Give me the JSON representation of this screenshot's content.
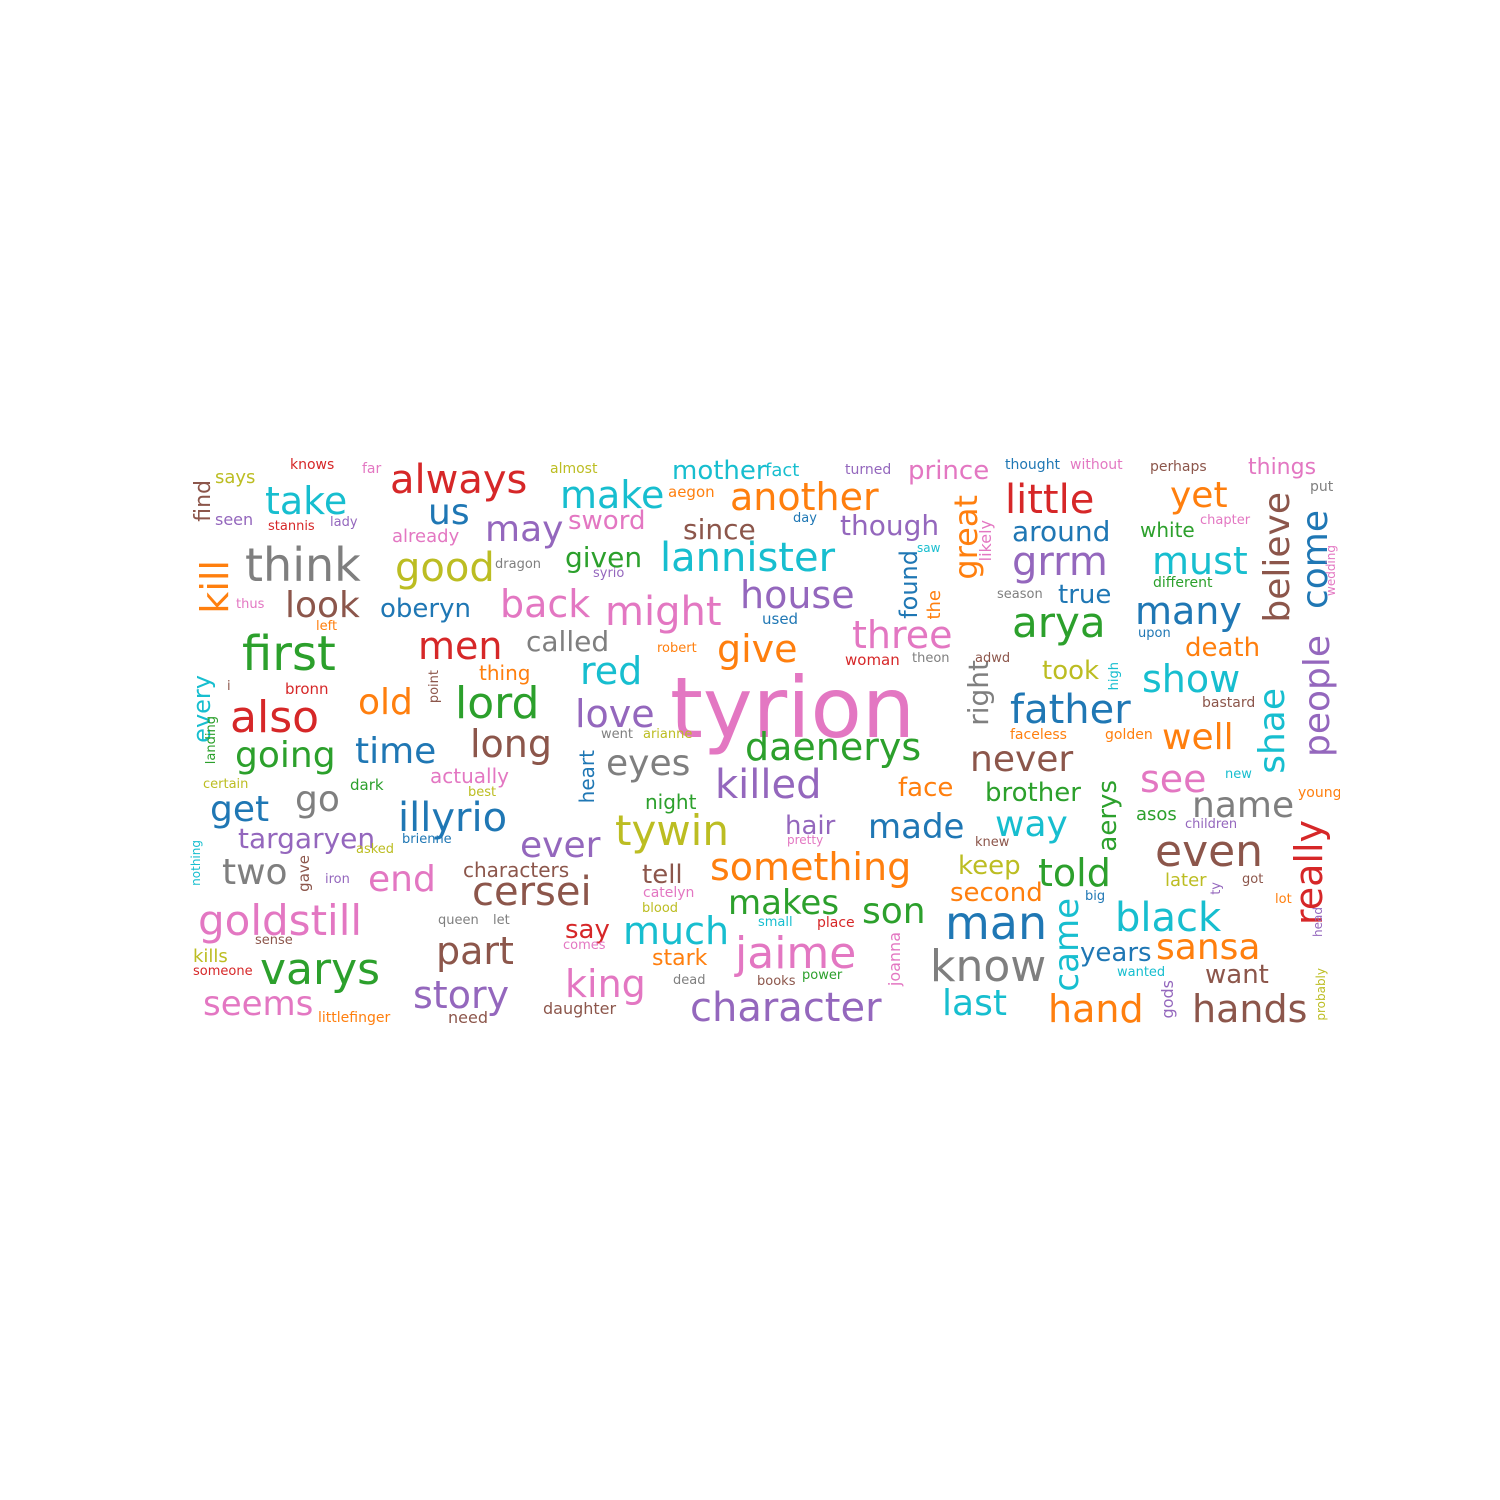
{
  "palette": {
    "blue": "#1f77b4",
    "orange": "#ff7f0e",
    "green": "#2ca02c",
    "red": "#d62728",
    "purple": "#9467bd",
    "brown": "#8c564b",
    "pink": "#e377c2",
    "gray": "#7f7f7f",
    "olive": "#bcbd22",
    "cyan": "#17becf"
  },
  "words": [
    {
      "text": "tyrion",
      "color": "pink"
    },
    {
      "text": "lannister",
      "color": "cyan"
    },
    {
      "text": "think",
      "color": "gray"
    },
    {
      "text": "first",
      "color": "green"
    },
    {
      "text": "also",
      "color": "red"
    },
    {
      "text": "always",
      "color": "red"
    },
    {
      "text": "another",
      "color": "orange"
    },
    {
      "text": "little",
      "color": "red"
    },
    {
      "text": "arya",
      "color": "green"
    },
    {
      "text": "lord",
      "color": "green"
    },
    {
      "text": "might",
      "color": "pink"
    },
    {
      "text": "good",
      "color": "olive"
    },
    {
      "text": "take",
      "color": "cyan"
    },
    {
      "text": "make",
      "color": "cyan"
    },
    {
      "text": "yet",
      "color": "orange"
    },
    {
      "text": "daenerys",
      "color": "green"
    },
    {
      "text": "tywin",
      "color": "olive"
    },
    {
      "text": "jaime",
      "color": "pink"
    },
    {
      "text": "varys",
      "color": "green"
    },
    {
      "text": "character",
      "color": "purple"
    },
    {
      "text": "something",
      "color": "orange"
    },
    {
      "text": "cersei",
      "color": "brown"
    },
    {
      "text": "goldstill",
      "color": "pink"
    },
    {
      "text": "even",
      "color": "brown"
    },
    {
      "text": "know",
      "color": "gray"
    },
    {
      "text": "man",
      "color": "blue"
    },
    {
      "text": "black",
      "color": "cyan"
    },
    {
      "text": "killed",
      "color": "purple"
    },
    {
      "text": "father",
      "color": "blue"
    },
    {
      "text": "illyrio",
      "color": "blue"
    },
    {
      "text": "grrm",
      "color": "purple"
    },
    {
      "text": "must",
      "color": "cyan"
    },
    {
      "text": "house",
      "color": "purple"
    },
    {
      "text": "three",
      "color": "pink"
    },
    {
      "text": "believe",
      "color": "brown"
    },
    {
      "text": "come",
      "color": "blue"
    },
    {
      "text": "people",
      "color": "purple"
    },
    {
      "text": "shae",
      "color": "cyan"
    },
    {
      "text": "really",
      "color": "red"
    },
    {
      "text": "great",
      "color": "orange"
    },
    {
      "text": "many",
      "color": "blue"
    },
    {
      "text": "men",
      "color": "red"
    },
    {
      "text": "back",
      "color": "pink"
    },
    {
      "text": "us",
      "color": "blue"
    },
    {
      "text": "may",
      "color": "purple"
    },
    {
      "text": "look",
      "color": "brown"
    },
    {
      "text": "kill",
      "color": "orange"
    },
    {
      "text": "red",
      "color": "cyan"
    },
    {
      "text": "give",
      "color": "orange"
    },
    {
      "text": "going",
      "color": "green"
    },
    {
      "text": "time",
      "color": "blue"
    },
    {
      "text": "long",
      "color": "brown"
    },
    {
      "text": "love",
      "color": "purple"
    },
    {
      "text": "eyes",
      "color": "gray"
    },
    {
      "text": "show",
      "color": "cyan"
    },
    {
      "text": "well",
      "color": "orange"
    },
    {
      "text": "see",
      "color": "pink"
    },
    {
      "text": "never",
      "color": "brown"
    },
    {
      "text": "name",
      "color": "gray"
    },
    {
      "text": "way",
      "color": "cyan"
    },
    {
      "text": "made",
      "color": "blue"
    },
    {
      "text": "get",
      "color": "blue"
    },
    {
      "text": "go",
      "color": "gray"
    },
    {
      "text": "ever",
      "color": "purple"
    },
    {
      "text": "told",
      "color": "green"
    },
    {
      "text": "two",
      "color": "gray"
    },
    {
      "text": "end",
      "color": "pink"
    },
    {
      "text": "part",
      "color": "brown"
    },
    {
      "text": "much",
      "color": "cyan"
    },
    {
      "text": "king",
      "color": "pink"
    },
    {
      "text": "story",
      "color": "purple"
    },
    {
      "text": "seems",
      "color": "pink"
    },
    {
      "text": "sansa",
      "color": "orange"
    },
    {
      "text": "hand",
      "color": "orange"
    },
    {
      "text": "hands",
      "color": "brown"
    },
    {
      "text": "last",
      "color": "cyan"
    },
    {
      "text": "son",
      "color": "green"
    },
    {
      "text": "makes",
      "color": "green"
    },
    {
      "text": "came",
      "color": "cyan"
    },
    {
      "text": "old",
      "color": "orange"
    },
    {
      "text": "oberyn",
      "color": "blue"
    },
    {
      "text": "called",
      "color": "gray"
    },
    {
      "text": "given",
      "color": "green"
    },
    {
      "text": "since",
      "color": "brown"
    },
    {
      "text": "though",
      "color": "purple"
    },
    {
      "text": "around",
      "color": "blue"
    },
    {
      "text": "mother",
      "color": "cyan"
    },
    {
      "text": "prince",
      "color": "pink"
    },
    {
      "text": "sword",
      "color": "pink"
    },
    {
      "text": "right",
      "color": "gray"
    },
    {
      "text": "death",
      "color": "orange"
    },
    {
      "text": "took",
      "color": "olive"
    },
    {
      "text": "true",
      "color": "blue"
    },
    {
      "text": "things",
      "color": "pink"
    },
    {
      "text": "white",
      "color": "green"
    },
    {
      "text": "targaryen",
      "color": "purple"
    },
    {
      "text": "hair",
      "color": "purple"
    },
    {
      "text": "face",
      "color": "orange"
    },
    {
      "text": "brother",
      "color": "green"
    },
    {
      "text": "aerys",
      "color": "green"
    },
    {
      "text": "keep",
      "color": "olive"
    },
    {
      "text": "second",
      "color": "orange"
    },
    {
      "text": "tell",
      "color": "brown"
    },
    {
      "text": "characters",
      "color": "brown"
    },
    {
      "text": "say",
      "color": "red"
    },
    {
      "text": "years",
      "color": "blue"
    },
    {
      "text": "want",
      "color": "brown"
    },
    {
      "text": "stark",
      "color": "orange"
    },
    {
      "text": "found",
      "color": "blue"
    },
    {
      "text": "every",
      "color": "cyan"
    },
    {
      "text": "find",
      "color": "brown"
    },
    {
      "text": "night",
      "color": "green"
    },
    {
      "text": "actually",
      "color": "pink"
    },
    {
      "text": "heart",
      "color": "blue"
    },
    {
      "text": "asos",
      "color": "green"
    },
    {
      "text": "later",
      "color": "olive"
    },
    {
      "text": "says",
      "color": "olive"
    },
    {
      "text": "knows",
      "color": "red"
    },
    {
      "text": "far",
      "color": "pink"
    },
    {
      "text": "almost",
      "color": "olive"
    },
    {
      "text": "fact",
      "color": "cyan"
    },
    {
      "text": "turned",
      "color": "purple"
    },
    {
      "text": "thought",
      "color": "blue"
    },
    {
      "text": "without",
      "color": "pink"
    },
    {
      "text": "perhaps",
      "color": "brown"
    },
    {
      "text": "put",
      "color": "gray"
    },
    {
      "text": "seen",
      "color": "purple"
    },
    {
      "text": "stannis",
      "color": "red"
    },
    {
      "text": "lady",
      "color": "purple"
    },
    {
      "text": "already",
      "color": "pink"
    },
    {
      "text": "aegon",
      "color": "orange"
    },
    {
      "text": "day",
      "color": "blue"
    },
    {
      "text": "chapter",
      "color": "pink"
    },
    {
      "text": "dragon",
      "color": "gray"
    },
    {
      "text": "syrio",
      "color": "purple"
    },
    {
      "text": "saw",
      "color": "cyan"
    },
    {
      "text": "likely",
      "color": "pink"
    },
    {
      "text": "the",
      "color": "orange"
    },
    {
      "text": "season",
      "color": "gray"
    },
    {
      "text": "different",
      "color": "green"
    },
    {
      "text": "wedding",
      "color": "pink"
    },
    {
      "text": "thus",
      "color": "pink"
    },
    {
      "text": "left",
      "color": "orange"
    },
    {
      "text": "used",
      "color": "blue"
    },
    {
      "text": "upon",
      "color": "blue"
    },
    {
      "text": "robert",
      "color": "orange"
    },
    {
      "text": "woman",
      "color": "red"
    },
    {
      "text": "theon",
      "color": "gray"
    },
    {
      "text": "adwd",
      "color": "brown"
    },
    {
      "text": "thing",
      "color": "orange"
    },
    {
      "text": "high",
      "color": "cyan"
    },
    {
      "text": "point",
      "color": "brown"
    },
    {
      "text": "i",
      "color": "brown"
    },
    {
      "text": "bronn",
      "color": "red"
    },
    {
      "text": "bastard",
      "color": "brown"
    },
    {
      "text": "landing",
      "color": "green"
    },
    {
      "text": "went",
      "color": "gray"
    },
    {
      "text": "arianne",
      "color": "olive"
    },
    {
      "text": "faceless",
      "color": "orange"
    },
    {
      "text": "golden",
      "color": "orange"
    },
    {
      "text": "certain",
      "color": "olive"
    },
    {
      "text": "dark",
      "color": "green"
    },
    {
      "text": "best",
      "color": "olive"
    },
    {
      "text": "new",
      "color": "cyan"
    },
    {
      "text": "young",
      "color": "orange"
    },
    {
      "text": "children",
      "color": "purple"
    },
    {
      "text": "brienne",
      "color": "blue"
    },
    {
      "text": "asked",
      "color": "olive"
    },
    {
      "text": "pretty",
      "color": "pink"
    },
    {
      "text": "knew",
      "color": "brown"
    },
    {
      "text": "nothing",
      "color": "cyan"
    },
    {
      "text": "gave",
      "color": "brown"
    },
    {
      "text": "iron",
      "color": "purple"
    },
    {
      "text": "catelyn",
      "color": "pink"
    },
    {
      "text": "blood",
      "color": "olive"
    },
    {
      "text": "ty",
      "color": "purple"
    },
    {
      "text": "got",
      "color": "brown"
    },
    {
      "text": "big",
      "color": "blue"
    },
    {
      "text": "lot",
      "color": "orange"
    },
    {
      "text": "queen",
      "color": "gray"
    },
    {
      "text": "let",
      "color": "gray"
    },
    {
      "text": "small",
      "color": "cyan"
    },
    {
      "text": "place",
      "color": "red"
    },
    {
      "text": "joanna",
      "color": "pink"
    },
    {
      "text": "head",
      "color": "purple"
    },
    {
      "text": "sense",
      "color": "brown"
    },
    {
      "text": "comes",
      "color": "pink"
    },
    {
      "text": "kills",
      "color": "olive"
    },
    {
      "text": "someone",
      "color": "red"
    },
    {
      "text": "wanted",
      "color": "cyan"
    },
    {
      "text": "power",
      "color": "green"
    },
    {
      "text": "dead",
      "color": "gray"
    },
    {
      "text": "books",
      "color": "brown"
    },
    {
      "text": "gods",
      "color": "purple"
    },
    {
      "text": "probably",
      "color": "olive"
    },
    {
      "text": "littlefinger",
      "color": "orange"
    },
    {
      "text": "need",
      "color": "brown"
    },
    {
      "text": "daughter",
      "color": "brown"
    }
  ]
}
